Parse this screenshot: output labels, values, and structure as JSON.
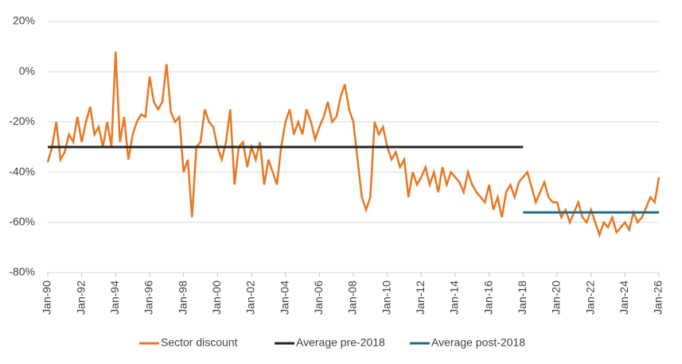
{
  "chart_data": {
    "type": "line",
    "x": [
      "1990-01",
      "1990-04",
      "1990-07",
      "1990-10",
      "1991-01",
      "1991-04",
      "1991-07",
      "1991-10",
      "1992-01",
      "1992-04",
      "1992-07",
      "1992-10",
      "1993-01",
      "1993-04",
      "1993-07",
      "1993-10",
      "1994-01",
      "1994-04",
      "1994-07",
      "1994-10",
      "1995-01",
      "1995-04",
      "1995-07",
      "1995-10",
      "1996-01",
      "1996-04",
      "1996-07",
      "1996-10",
      "1997-01",
      "1997-04",
      "1997-07",
      "1997-10",
      "1998-01",
      "1998-04",
      "1998-07",
      "1998-10",
      "1999-01",
      "1999-04",
      "1999-07",
      "1999-10",
      "2000-01",
      "2000-04",
      "2000-07",
      "2000-10",
      "2001-01",
      "2001-04",
      "2001-07",
      "2001-10",
      "2002-01",
      "2002-04",
      "2002-07",
      "2002-10",
      "2003-01",
      "2003-04",
      "2003-07",
      "2003-10",
      "2004-01",
      "2004-04",
      "2004-07",
      "2004-10",
      "2005-01",
      "2005-04",
      "2005-07",
      "2005-10",
      "2006-01",
      "2006-04",
      "2006-07",
      "2006-10",
      "2007-01",
      "2007-04",
      "2007-07",
      "2007-10",
      "2008-01",
      "2008-04",
      "2008-07",
      "2008-10",
      "2009-01",
      "2009-04",
      "2009-07",
      "2009-10",
      "2010-01",
      "2010-04",
      "2010-07",
      "2010-10",
      "2011-01",
      "2011-04",
      "2011-07",
      "2011-10",
      "2012-01",
      "2012-04",
      "2012-07",
      "2012-10",
      "2013-01",
      "2013-04",
      "2013-07",
      "2013-10",
      "2014-01",
      "2014-04",
      "2014-07",
      "2014-10",
      "2015-01",
      "2015-04",
      "2015-07",
      "2015-10",
      "2016-01",
      "2016-04",
      "2016-07",
      "2016-10",
      "2017-01",
      "2017-04",
      "2017-07",
      "2017-10",
      "2018-01",
      "2018-04",
      "2018-07",
      "2018-10",
      "2019-01",
      "2019-04",
      "2019-07",
      "2019-10",
      "2020-01",
      "2020-04",
      "2020-07",
      "2020-10",
      "2021-01",
      "2021-04",
      "2021-07",
      "2021-10",
      "2022-01",
      "2022-04",
      "2022-07",
      "2022-10",
      "2023-01",
      "2023-04",
      "2023-07",
      "2023-10",
      "2024-01",
      "2024-04",
      "2024-07",
      "2024-10",
      "2025-01",
      "2025-04",
      "2025-07",
      "2025-10",
      "2026-01"
    ],
    "series": [
      {
        "name": "Sector discount",
        "color": "#e87722",
        "values": [
          -36,
          -30,
          -20,
          -35,
          -32,
          -25,
          -28,
          -18,
          -28,
          -20,
          -14,
          -25,
          -22,
          -30,
          -20,
          -30,
          8,
          -28,
          -18,
          -35,
          -25,
          -20,
          -17,
          -18,
          -2,
          -12,
          -15,
          -12,
          3,
          -16,
          -20,
          -18,
          -40,
          -35,
          -58,
          -30,
          -28,
          -15,
          -20,
          -22,
          -30,
          -35,
          -28,
          -15,
          -45,
          -30,
          -28,
          -38,
          -30,
          -35,
          -28,
          -45,
          -35,
          -40,
          -45,
          -30,
          -20,
          -15,
          -25,
          -20,
          -25,
          -15,
          -20,
          -27,
          -22,
          -18,
          -12,
          -20,
          -18,
          -10,
          -5,
          -15,
          -20,
          -35,
          -50,
          -55,
          -50,
          -20,
          -25,
          -22,
          -30,
          -35,
          -32,
          -38,
          -35,
          -50,
          -40,
          -45,
          -42,
          -38,
          -45,
          -40,
          -48,
          -38,
          -45,
          -40,
          -42,
          -44,
          -48,
          -40,
          -45,
          -48,
          -50,
          -52,
          -45,
          -55,
          -50,
          -58,
          -48,
          -45,
          -50,
          -44,
          -42,
          -40,
          -46,
          -52,
          -48,
          -44,
          -50,
          -52,
          -52,
          -58,
          -55,
          -60,
          -56,
          -52,
          -58,
          -60,
          -55,
          -60,
          -65,
          -60,
          -62,
          -58,
          -64,
          -62,
          -60,
          -63,
          -56,
          -60,
          -58,
          -54,
          -50,
          -52,
          -42
        ]
      },
      {
        "name": "Average pre-2018",
        "color": "#262626",
        "x": [
          "1990-01",
          "2018-01"
        ],
        "values": [
          -30,
          -30
        ]
      },
      {
        "name": "Average post-2018",
        "color": "#1f6e83",
        "x": [
          "2018-01",
          "2026-01"
        ],
        "values": [
          -56,
          -56
        ]
      }
    ],
    "xlim": [
      "1990-01",
      "2026-01"
    ],
    "xticks": [
      {
        "value": "1990-01",
        "label": "Jan-90"
      },
      {
        "value": "1992-01",
        "label": "Jan-92"
      },
      {
        "value": "1994-01",
        "label": "Jan-94"
      },
      {
        "value": "1996-01",
        "label": "Jan-96"
      },
      {
        "value": "1998-01",
        "label": "Jan-98"
      },
      {
        "value": "2000-01",
        "label": "Jan-00"
      },
      {
        "value": "2002-01",
        "label": "Jan-02"
      },
      {
        "value": "2004-01",
        "label": "Jan-04"
      },
      {
        "value": "2006-01",
        "label": "Jan-06"
      },
      {
        "value": "2008-01",
        "label": "Jan-08"
      },
      {
        "value": "2010-01",
        "label": "Jan-10"
      },
      {
        "value": "2012-01",
        "label": "Jan-12"
      },
      {
        "value": "2014-01",
        "label": "Jan-14"
      },
      {
        "value": "2016-01",
        "label": "Jan-16"
      },
      {
        "value": "2018-01",
        "label": "Jan-18"
      },
      {
        "value": "2020-01",
        "label": "Jan-20"
      },
      {
        "value": "2022-01",
        "label": "Jan-22"
      },
      {
        "value": "2024-01",
        "label": "Jan-24"
      },
      {
        "value": "2026-01",
        "label": "Jan-26"
      }
    ],
    "ylim": [
      -80,
      20
    ],
    "yticks": [
      {
        "value": 20,
        "label": "20%"
      },
      {
        "value": 0,
        "label": "0%"
      },
      {
        "value": -20,
        "label": "-20%"
      },
      {
        "value": -40,
        "label": "-40%"
      },
      {
        "value": -60,
        "label": "-60%"
      },
      {
        "value": -80,
        "label": "-80%"
      }
    ],
    "grid": true,
    "legend": "bottom"
  }
}
